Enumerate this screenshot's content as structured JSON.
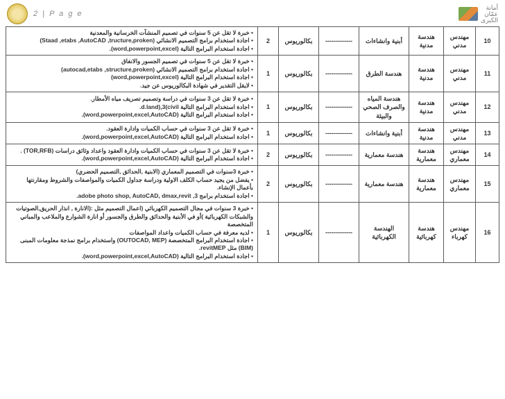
{
  "page_label": "2 | P a g e",
  "org_name_1": "أمانة",
  "org_name_2": "عمّان",
  "org_name_3": "الكبرى",
  "dash": "-------------",
  "degree": "بكالوريوس",
  "rows": [
    {
      "idx": "10",
      "job": "مهندس مدني",
      "eng": "هندسة مدنية",
      "spec": "أبنية وانشاءات",
      "count": "2",
      "req": [
        "• خبرة لا تقل عن 5 سنوات في تصميم المنشآت الخرسانية والمعدنية",
        "• اجادة استخدام برامج التصميم الانشائي (Staad ,etabs ,AutoCAD ,tructure,proken)",
        "• اجادة استخدام البرامج التالية (word,powerpoint,excel)."
      ]
    },
    {
      "idx": "11",
      "job": "مهندس مدني",
      "eng": "هندسة مدنية",
      "spec": "هندسة الطرق",
      "count": "1",
      "req": [
        "• خبرة لا تقل عن 5 سنوات في تصميم الجسور والانفاق",
        "• اجادة استخدام برامج التصميم الانشائي (autocad,etabs ,structure,proken)",
        "• اجادة استخدام البرامج التالية (word,powerpoint,excel)",
        "• لايقل التقدير في شهادة البكالوريوس عن جيد."
      ]
    },
    {
      "idx": "12",
      "job": "مهندس مدني",
      "eng": "هندسة مدنية",
      "spec": "هندسة المياه والصرف الصحي والبيئة",
      "count": "1",
      "req": [
        "• خبرة لا تقل عن 3 سنوات في دراسة وتصميم تصريف مياه الأمطار.",
        "• اجادة استخدام البرامج التالية d.land),3(civil.",
        "• اجادة استخدام البرامج التالية (word,powerpoint,excel,AutoCAD)."
      ]
    },
    {
      "idx": "13",
      "job": "مهندس مدني",
      "eng": "هندسة مدنية",
      "spec": "أبنية وانشاءات",
      "count": "1",
      "req": [
        "• خبرة لا تقل عن 3 سنوات في حساب الكميات وادارة العقود.",
        "• اجادة استخدام البرامج التالية (word,powerpoint,excel,AutoCAD)."
      ]
    },
    {
      "idx": "14",
      "job": "مهندس معماري",
      "eng": "هندسة معمارية",
      "spec": "هندسة معمارية",
      "count": "2",
      "req": [
        "• خبرة لا تقل عن 3 سنوات في حساب الكميات وادارة العقود واعداد وثائق دراسات (TOR,RFB) .",
        "• اجادة استخدام البرامج التالية (word,powerpoint,excel,AutoCAD)."
      ]
    },
    {
      "idx": "15",
      "job": "مهندس معماري",
      "eng": "هندسة معمارية",
      "spec": "هندسة معمارية",
      "count": "2",
      "req": [
        "• خبرة 3سنوات في التصميم المعماري (الابنية ,الحدائق ,التصميم الحضري)",
        "• يفضل من يجيد حساب الكلف الاولية ودراسة جداول الكميات والمواصفات والشروط ومقارنتها بأعمال الإنشاء.",
        "• اجادة استخدام برامج adobe photo shop, AutoCAD, dmax,revit ,3."
      ]
    },
    {
      "idx": "16",
      "job": "مهندس كهرباء",
      "eng": "هندسة كهربائية",
      "spec": "الهندسة الكهربائية",
      "count": "1",
      "req": [
        "• خبرة 3 سنوات في مجال التصميم الكهربائي (اعمال التصميم مثل :(الانارة , انذار الحريق,الصوتيات والشبكات الكهربائية )أو في الأبنية والحدائق والطرق والجسور أو انارة الشوارع والملاعب والمباني المتخصصة",
        "• لديه معرفة في حساب الكميات واعداد المواصفات",
        "• اجادة استخدام البرامج المتخصصة (OUTOCAD, MEP) واستخدام برامج نمذجة معلومات المبنى (BIM) مثل revitMEP.",
        "• اجادة استخدام البرامج التالية (word,powerpoint,excel,AutoCAD)."
      ]
    }
  ]
}
